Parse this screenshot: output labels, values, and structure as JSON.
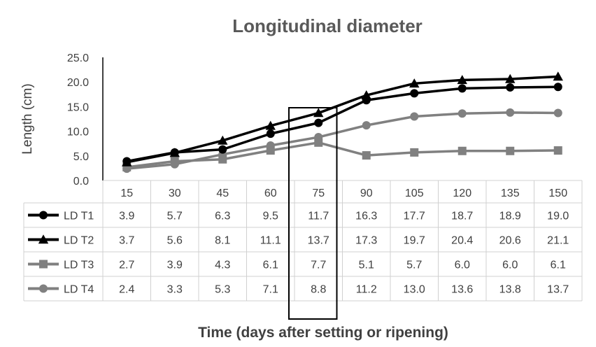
{
  "chart_data": {
    "type": "line",
    "title": "Longitudinal diameter",
    "xlabel": "Time (days after setting or ripening)",
    "ylabel": "Length (cm)",
    "ylim": [
      0,
      25
    ],
    "y_ticks": [
      "0.0",
      "5.0",
      "10.0",
      "15.0",
      "20.0",
      "25.0"
    ],
    "categories": [
      "15",
      "30",
      "45",
      "60",
      "75",
      "90",
      "105",
      "120",
      "135",
      "150"
    ],
    "data_table": true,
    "highlight_category": "75",
    "series": [
      {
        "name": "LD T1",
        "color": "#000000",
        "marker": "circle",
        "values": [
          3.9,
          5.7,
          6.3,
          9.5,
          11.7,
          16.3,
          17.7,
          18.7,
          18.9,
          19.0
        ],
        "labels": [
          "3.9",
          "5.7",
          "6.3",
          "9.5",
          "11.7",
          "16.3",
          "17.7",
          "18.7",
          "18.9",
          "19.0"
        ]
      },
      {
        "name": "LD T2",
        "color": "#000000",
        "marker": "triangle",
        "values": [
          3.7,
          5.6,
          8.1,
          11.1,
          13.7,
          17.3,
          19.7,
          20.4,
          20.6,
          21.1
        ],
        "labels": [
          "3.7",
          "5.6",
          "8.1",
          "11.1",
          "13.7",
          "17.3",
          "19.7",
          "20.4",
          "20.6",
          "21.1"
        ]
      },
      {
        "name": "LD T3",
        "color": "#808080",
        "marker": "square",
        "values": [
          2.7,
          3.9,
          4.3,
          6.1,
          7.7,
          5.1,
          5.7,
          6.0,
          6.0,
          6.1
        ],
        "labels": [
          "2.7",
          "3.9",
          "4.3",
          "6.1",
          "7.7",
          "5.1",
          "5.7",
          "6.0",
          "6.0",
          "6.1"
        ]
      },
      {
        "name": "LD T4",
        "color": "#808080",
        "marker": "circle",
        "values": [
          2.4,
          3.3,
          5.3,
          7.1,
          8.8,
          11.2,
          13.0,
          13.6,
          13.8,
          13.7
        ],
        "labels": [
          "2.4",
          "3.3",
          "5.3",
          "7.1",
          "8.8",
          "11.2",
          "13.0",
          "13.6",
          "13.8",
          "13.7"
        ]
      }
    ]
  }
}
